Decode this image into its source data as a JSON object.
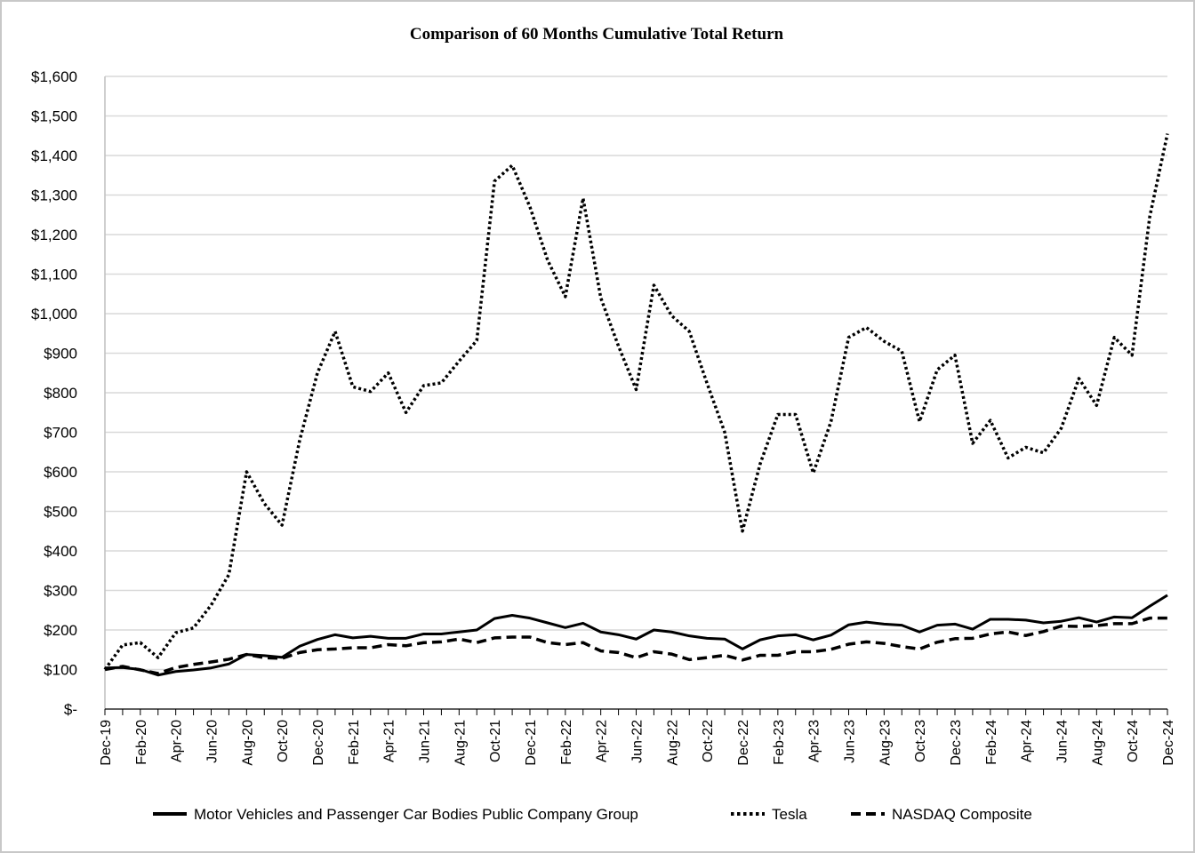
{
  "chart_data": {
    "type": "line",
    "title": "Comparison of 60 Months Cumulative Total Return",
    "xlabel": "",
    "ylabel": "",
    "ylim": [
      0,
      1600
    ],
    "y_ticks": [
      0,
      100,
      200,
      300,
      400,
      500,
      600,
      700,
      800,
      900,
      1000,
      1100,
      1200,
      1300,
      1400,
      1500,
      1600
    ],
    "y_tick_labels": [
      "$-",
      "$100",
      "$200",
      "$300",
      "$400",
      "$500",
      "$600",
      "$700",
      "$800",
      "$900",
      "$1,000",
      "$1,100",
      "$1,200",
      "$1,300",
      "$1,400",
      "$1,500",
      "$1,600"
    ],
    "x_tick_labels": [
      "Dec-19",
      "Feb-20",
      "Apr-20",
      "Jun-20",
      "Aug-20",
      "Oct-20",
      "Dec-20",
      "Feb-21",
      "Apr-21",
      "Jun-21",
      "Aug-21",
      "Oct-21",
      "Dec-21",
      "Feb-22",
      "Apr-22",
      "Jun-22",
      "Aug-22",
      "Oct-22",
      "Dec-22",
      "Feb-23",
      "Apr-23",
      "Jun-23",
      "Aug-23",
      "Oct-23",
      "Dec-23",
      "Feb-24",
      "Apr-24",
      "Jun-24",
      "Aug-24",
      "Oct-24",
      "Dec-24"
    ],
    "grid": true,
    "legend_position": "bottom",
    "series": [
      {
        "name": "Motor Vehicles and Passenger Car Bodies Public Company Group",
        "style": "solid",
        "values": [
          104,
          105,
          100,
          86,
          95,
          99,
          104,
          114,
          138,
          135,
          131,
          159,
          176,
          188,
          180,
          184,
          179,
          179,
          190,
          190,
          195,
          200,
          229,
          237,
          230,
          218,
          206,
          217,
          195,
          188,
          177,
          200,
          195,
          185,
          179,
          177,
          152,
          175,
          185,
          188,
          175,
          187,
          213,
          220,
          215,
          212,
          195,
          212,
          215,
          202,
          227,
          227,
          225,
          218,
          222,
          231,
          220,
          233,
          231,
          260,
          288
        ]
      },
      {
        "name": "Tesla",
        "style": "dotted",
        "values": [
          100,
          162,
          168,
          130,
          193,
          205,
          263,
          340,
          600,
          520,
          465,
          680,
          850,
          955,
          815,
          803,
          850,
          750,
          818,
          825,
          880,
          932,
          1335,
          1375,
          1270,
          1135,
          1043,
          1292,
          1040,
          918,
          808,
          1072,
          995,
          955,
          824,
          700,
          450,
          620,
          745,
          745,
          597,
          727,
          940,
          965,
          930,
          905,
          727,
          858,
          895,
          672,
          730,
          635,
          662,
          648,
          710,
          836,
          768,
          940,
          895,
          1245,
          1455
        ]
      },
      {
        "name": "NASDAQ Composite",
        "style": "dashed",
        "values": [
          100,
          108,
          99,
          90,
          105,
          113,
          119,
          126,
          138,
          130,
          128,
          143,
          150,
          152,
          155,
          155,
          163,
          160,
          168,
          170,
          177,
          168,
          180,
          182,
          182,
          168,
          163,
          168,
          147,
          143,
          130,
          145,
          139,
          125,
          130,
          136,
          124,
          136,
          136,
          145,
          145,
          151,
          164,
          170,
          166,
          158,
          152,
          169,
          178,
          179,
          190,
          195,
          186,
          196,
          210,
          209,
          211,
          216,
          216,
          230,
          230
        ]
      }
    ]
  }
}
